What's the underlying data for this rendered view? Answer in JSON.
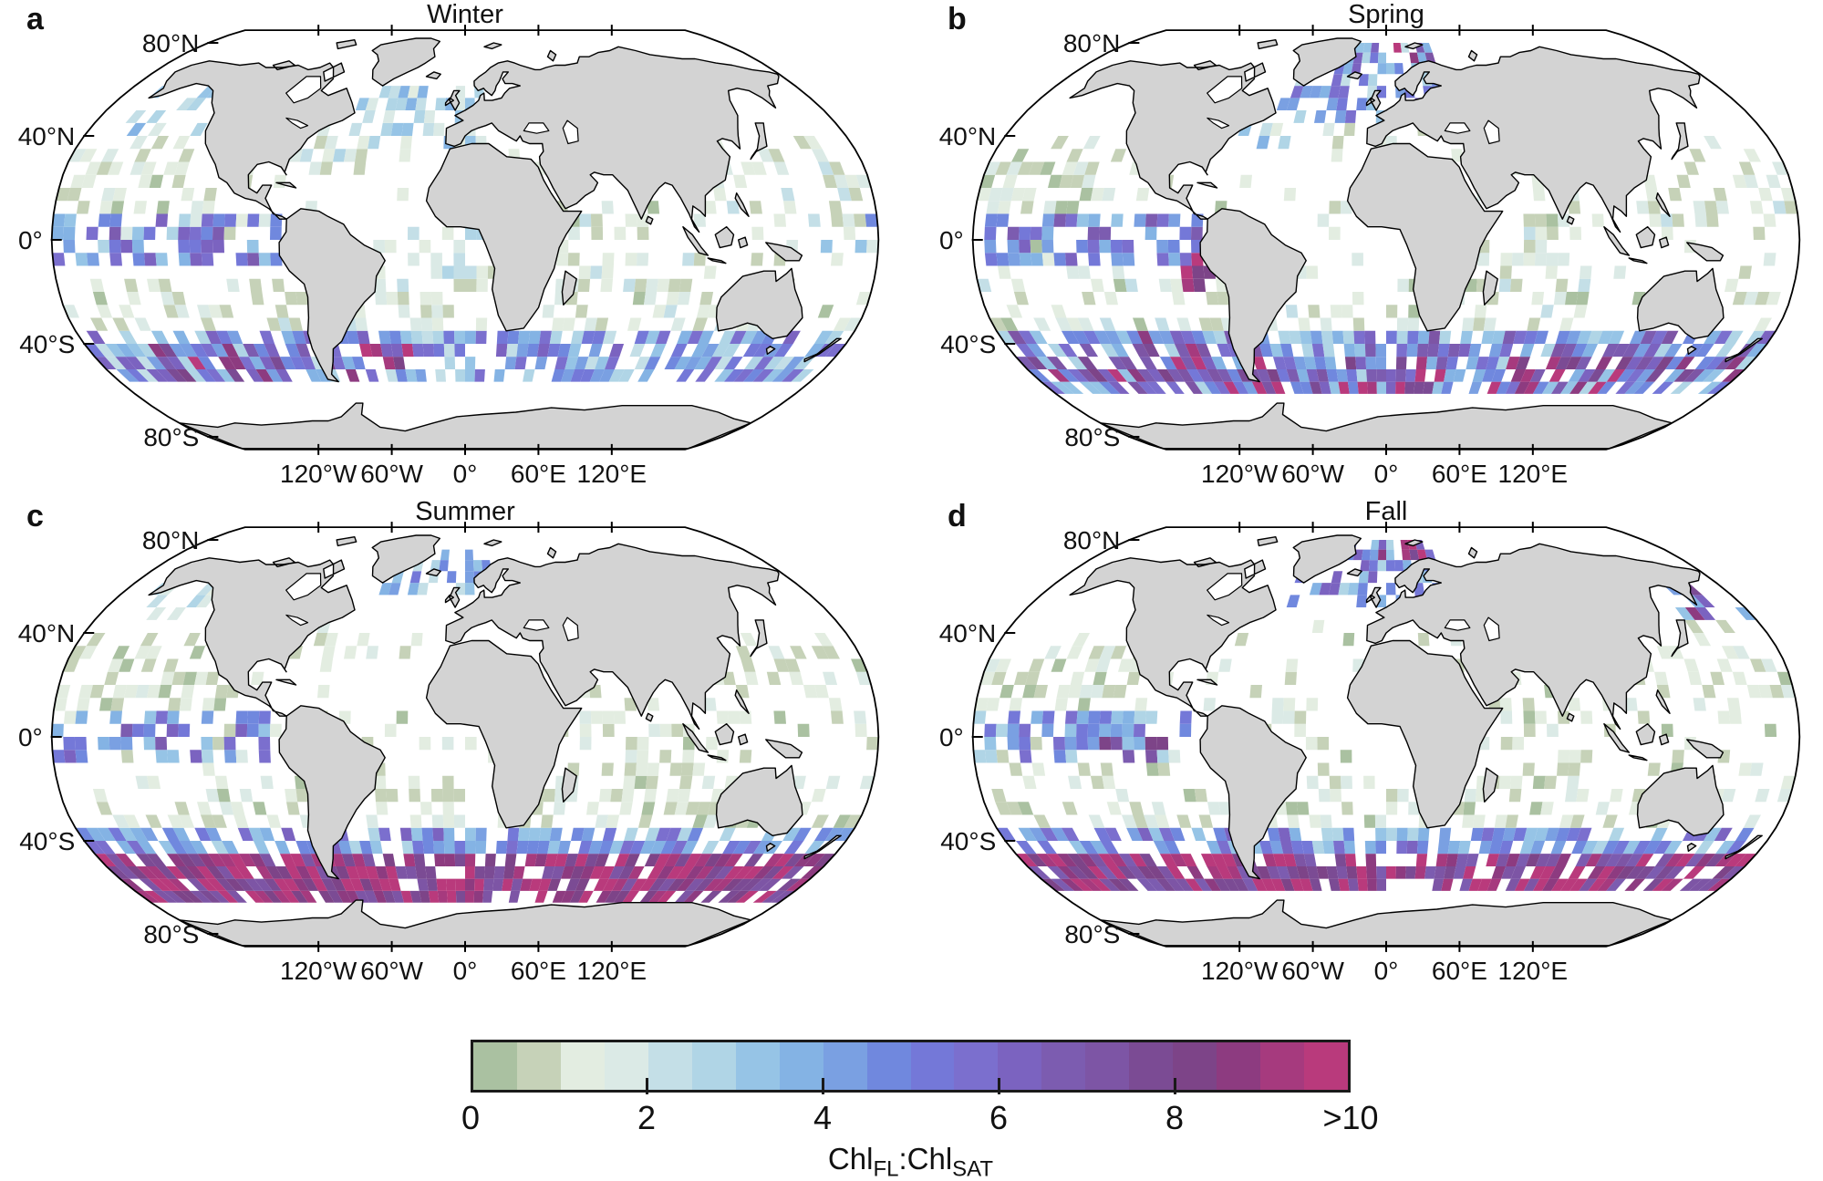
{
  "chart_data": {
    "type": "heatmap",
    "subtype": "seasonal-global-gridded-maps",
    "projection": "robinson",
    "variable": "ChlFL:ChlSAT",
    "cell_size_deg": 5,
    "lat_ticks": [
      {
        "lat": 80,
        "label": "80°N"
      },
      {
        "lat": 40,
        "label": "40°N"
      },
      {
        "lat": 0,
        "label": "0°"
      },
      {
        "lat": -40,
        "label": "40°S"
      },
      {
        "lat": -80,
        "label": "80°S"
      }
    ],
    "lon_ticks": [
      {
        "lon": -120,
        "label": "120°W"
      },
      {
        "lon": -60,
        "label": "60°W"
      },
      {
        "lon": 0,
        "label": "0°"
      },
      {
        "lon": 60,
        "label": "60°E"
      },
      {
        "lon": 120,
        "label": "120°E"
      }
    ],
    "colorbar": {
      "range": [
        0,
        10
      ],
      "n_bins": 20,
      "bin_width": 0.5,
      "colors": [
        "#aac1a1",
        "#c6d2b8",
        "#e3ede1",
        "#dbeae6",
        "#c4dfe7",
        "#b0d5e6",
        "#96c4e6",
        "#84b3e4",
        "#7aa0e2",
        "#7088de",
        "#7478d8",
        "#7b6fce",
        "#7b63c0",
        "#7c5cb0",
        "#7d55a5",
        "#7b4b94",
        "#7d4488",
        "#8d3b80",
        "#a63a7e",
        "#b93a7c"
      ],
      "ticks": [
        {
          "value": 0,
          "label": "0"
        },
        {
          "value": 2,
          "label": "2"
        },
        {
          "value": 4,
          "label": "4"
        },
        {
          "value": 6,
          "label": "6"
        },
        {
          "value": 8,
          "label": "8"
        },
        {
          "value": 10,
          "label": ">10"
        }
      ],
      "label_parts": {
        "t1": "Chl",
        "s1": "FL",
        "t2": ":Chl",
        "s2": "SAT"
      }
    },
    "panels": [
      {
        "letter": "a",
        "title": "Winter",
        "zones": [
          {
            "lat": [
              -35,
              42
            ],
            "lon": [
              -180,
              180
            ],
            "density": 0.1,
            "value_range": [
              0.4,
              1.8
            ]
          },
          {
            "lat": [
              -56,
              -34
            ],
            "lon": [
              -180,
              180
            ],
            "density": 0.72,
            "value_range": [
              2.0,
              6.5
            ]
          },
          {
            "lat": [
              -56,
              -40
            ],
            "lon": [
              -162,
              -55
            ],
            "density": 0.42,
            "value_range": [
              5.5,
              9.8
            ]
          },
          {
            "lat": [
              -52,
              -42
            ],
            "lon": [
              -62,
              -25
            ],
            "density": 0.3,
            "value_range": [
              6.0,
              10.4
            ]
          },
          {
            "lat": [
              -34,
              -14
            ],
            "lon": [
              -180,
              180
            ],
            "density": 0.26,
            "value_range": [
              0.4,
              2.2
            ]
          },
          {
            "lat": [
              -12,
              12
            ],
            "lon": [
              -180,
              -82
            ],
            "density": 0.62,
            "value_range": [
              2.8,
              6.8
            ]
          },
          {
            "lat": [
              -4,
              10
            ],
            "lon": [
              152,
              180
            ],
            "density": 0.38,
            "value_range": [
              2.5,
              5.5
            ]
          },
          {
            "lat": [
              8,
              36
            ],
            "lon": [
              -180,
              -105
            ],
            "density": 0.36,
            "value_range": [
              0.3,
              1.8
            ]
          },
          {
            "lat": [
              34,
              62
            ],
            "lon": [
              -56,
              8
            ],
            "density": 0.48,
            "value_range": [
              1.0,
              4.0
            ]
          },
          {
            "lat": [
              42,
              60
            ],
            "lon": [
              -165,
              -125
            ],
            "density": 0.42,
            "value_range": [
              1.2,
              3.6
            ]
          },
          {
            "lat": [
              -18,
              12
            ],
            "lon": [
              40,
              100
            ],
            "density": 0.26,
            "value_range": [
              0.5,
              2.2
            ]
          },
          {
            "lat": [
              -22,
              4
            ],
            "lon": [
              -40,
              12
            ],
            "density": 0.32,
            "value_range": [
              0.8,
              3.0
            ]
          },
          {
            "lat": [
              4,
              36
            ],
            "lon": [
              104,
              180
            ],
            "density": 0.28,
            "value_range": [
              0.5,
              2.4
            ]
          },
          {
            "lat": [
              30,
              44
            ],
            "lon": [
              -78,
              -48
            ],
            "density": 0.38,
            "value_range": [
              1.0,
              3.2
            ]
          }
        ]
      },
      {
        "letter": "b",
        "title": "Spring",
        "zones": [
          {
            "lat": [
              -35,
              45
            ],
            "lon": [
              -180,
              180
            ],
            "density": 0.1,
            "value_range": [
              0.4,
              1.8
            ]
          },
          {
            "lat": [
              -58,
              -34
            ],
            "lon": [
              -180,
              180
            ],
            "density": 0.78,
            "value_range": [
              2.5,
              7.5
            ]
          },
          {
            "lat": [
              -58,
              -44
            ],
            "lon": [
              -180,
              180
            ],
            "density": 0.28,
            "value_range": [
              7.5,
              10.4
            ]
          },
          {
            "lat": [
              -50,
              -34
            ],
            "lon": [
              -120,
              -58
            ],
            "density": 0.35,
            "value_range": [
              6.0,
              10.4
            ]
          },
          {
            "lat": [
              -34,
              -14
            ],
            "lon": [
              -180,
              180
            ],
            "density": 0.26,
            "value_range": [
              0.4,
              2.2
            ]
          },
          {
            "lat": [
              -12,
              12
            ],
            "lon": [
              -180,
              -82
            ],
            "density": 0.64,
            "value_range": [
              3.0,
              7.0
            ]
          },
          {
            "lat": [
              -18,
              -4
            ],
            "lon": [
              -95,
              -74
            ],
            "density": 0.45,
            "value_range": [
              7.0,
              10.4
            ]
          },
          {
            "lat": [
              8,
              36
            ],
            "lon": [
              -180,
              -105
            ],
            "density": 0.38,
            "value_range": [
              0.3,
              2.0
            ]
          },
          {
            "lat": [
              46,
              78
            ],
            "lon": [
              -52,
              28
            ],
            "density": 0.6,
            "value_range": [
              2.0,
              6.2
            ]
          },
          {
            "lat": [
              72,
              80
            ],
            "lon": [
              0,
              28
            ],
            "density": 0.55,
            "value_range": [
              6.5,
              10.4
            ]
          },
          {
            "lat": [
              -18,
              12
            ],
            "lon": [
              40,
              100
            ],
            "density": 0.26,
            "value_range": [
              0.5,
              2.2
            ]
          },
          {
            "lat": [
              4,
              36
            ],
            "lon": [
              104,
              180
            ],
            "density": 0.28,
            "value_range": [
              0.5,
              2.2
            ]
          },
          {
            "lat": [
              34,
              54
            ],
            "lon": [
              -76,
              -44
            ],
            "density": 0.42,
            "value_range": [
              1.5,
              4.5
            ]
          }
        ]
      },
      {
        "letter": "c",
        "title": "Summer",
        "zones": [
          {
            "lat": [
              -35,
              45
            ],
            "lon": [
              -180,
              180
            ],
            "density": 0.11,
            "value_range": [
              0.3,
              1.6
            ]
          },
          {
            "lat": [
              -66,
              -44
            ],
            "lon": [
              -180,
              180
            ],
            "density": 0.88,
            "value_range": [
              7.0,
              10.5
            ]
          },
          {
            "lat": [
              -46,
              -34
            ],
            "lon": [
              -180,
              180
            ],
            "density": 0.68,
            "value_range": [
              2.5,
              6.2
            ]
          },
          {
            "lat": [
              -34,
              -14
            ],
            "lon": [
              -180,
              180
            ],
            "density": 0.3,
            "value_range": [
              0.3,
              1.8
            ]
          },
          {
            "lat": [
              -12,
              12
            ],
            "lon": [
              -180,
              -84
            ],
            "density": 0.58,
            "value_range": [
              2.8,
              6.6
            ]
          },
          {
            "lat": [
              8,
              38
            ],
            "lon": [
              -180,
              -105
            ],
            "density": 0.42,
            "value_range": [
              0.2,
              1.6
            ]
          },
          {
            "lat": [
              28,
              46
            ],
            "lon": [
              -76,
              -38
            ],
            "density": 0.36,
            "value_range": [
              0.5,
              2.0
            ]
          },
          {
            "lat": [
              54,
              76
            ],
            "lon": [
              -46,
              16
            ],
            "density": 0.48,
            "value_range": [
              2.0,
              6.5
            ]
          },
          {
            "lat": [
              44,
              60
            ],
            "lon": [
              -166,
              -128
            ],
            "density": 0.42,
            "value_range": [
              1.2,
              3.2
            ]
          },
          {
            "lat": [
              -16,
              10
            ],
            "lon": [
              42,
              100
            ],
            "density": 0.26,
            "value_range": [
              0.4,
              1.8
            ]
          },
          {
            "lat": [
              4,
              36
            ],
            "lon": [
              104,
              180
            ],
            "density": 0.3,
            "value_range": [
              0.4,
              2.0
            ]
          }
        ]
      },
      {
        "letter": "d",
        "title": "Fall",
        "zones": [
          {
            "lat": [
              -35,
              45
            ],
            "lon": [
              -180,
              180
            ],
            "density": 0.1,
            "value_range": [
              0.3,
              1.6
            ]
          },
          {
            "lat": [
              -62,
              -44
            ],
            "lon": [
              -180,
              180
            ],
            "density": 0.82,
            "value_range": [
              6.5,
              10.5
            ]
          },
          {
            "lat": [
              -46,
              -33
            ],
            "lon": [
              -180,
              180
            ],
            "density": 0.68,
            "value_range": [
              2.5,
              6.5
            ]
          },
          {
            "lat": [
              -33,
              -14
            ],
            "lon": [
              -180,
              180
            ],
            "density": 0.28,
            "value_range": [
              0.4,
              2.0
            ]
          },
          {
            "lat": [
              -12,
              12
            ],
            "lon": [
              -180,
              -84
            ],
            "density": 0.62,
            "value_range": [
              2.5,
              6.0
            ]
          },
          {
            "lat": [
              -10,
              2
            ],
            "lon": [
              -128,
              -88
            ],
            "density": 0.28,
            "value_range": [
              6.0,
              8.5
            ]
          },
          {
            "lat": [
              8,
              36
            ],
            "lon": [
              -180,
              -105
            ],
            "density": 0.38,
            "value_range": [
              0.3,
              1.8
            ]
          },
          {
            "lat": [
              50,
              80
            ],
            "lon": [
              -52,
              28
            ],
            "density": 0.55,
            "value_range": [
              2.5,
              6.5
            ]
          },
          {
            "lat": [
              72,
              80
            ],
            "lon": [
              -4,
              24
            ],
            "density": 0.5,
            "value_range": [
              7.5,
              10.5
            ]
          },
          {
            "lat": [
              46,
              58
            ],
            "lon": [
              146,
              178
            ],
            "density": 0.45,
            "value_range": [
              3.0,
              10.0
            ]
          },
          {
            "lat": [
              -18,
              10
            ],
            "lon": [
              40,
              100
            ],
            "density": 0.26,
            "value_range": [
              0.5,
              2.0
            ]
          },
          {
            "lat": [
              4,
              36
            ],
            "lon": [
              104,
              180
            ],
            "density": 0.28,
            "value_range": [
              0.4,
              2.0
            ]
          }
        ]
      }
    ]
  },
  "map_style": {
    "land": "#d3d3d3",
    "coast": "#000000",
    "ocean": "#ffffff",
    "outline": "#000000"
  }
}
